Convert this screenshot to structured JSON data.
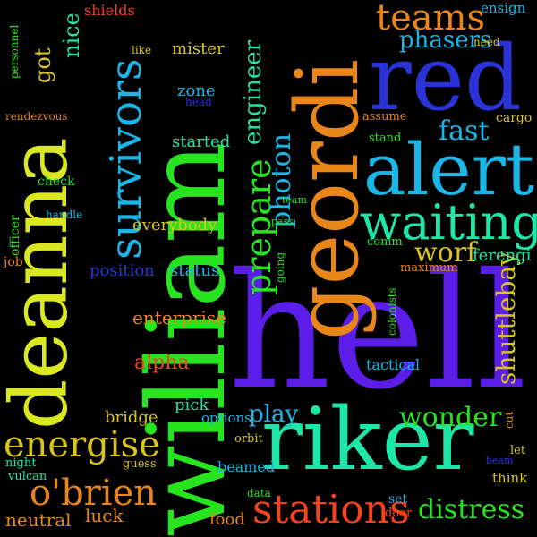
{
  "words": [
    {
      "text": "hell",
      "color": "#5b1de8"
    },
    {
      "text": "william",
      "color": "#27e320"
    },
    {
      "text": "geordi",
      "color": "#e8861a"
    },
    {
      "text": "riker",
      "color": "#1fe6a8"
    },
    {
      "text": "red",
      "color": "#2a34d6"
    },
    {
      "text": "deanna",
      "color": "#d9e820"
    },
    {
      "text": "alert",
      "color": "#1ab6e8"
    },
    {
      "text": "waiting",
      "color": "#1fe6a8"
    },
    {
      "text": "survivors",
      "color": "#1ab6e8"
    },
    {
      "text": "stations",
      "color": "#f2421e"
    },
    {
      "text": "energise",
      "color": "#d9c51c"
    },
    {
      "text": "o'brien",
      "color": "#e8861a"
    },
    {
      "text": "teams",
      "color": "#e8861a"
    },
    {
      "text": "prepare",
      "color": "#27e320"
    },
    {
      "text": "distress",
      "color": "#27e320"
    },
    {
      "text": "wonder",
      "color": "#27e320"
    },
    {
      "text": "photon",
      "color": "#1ab6e8"
    },
    {
      "text": "fast",
      "color": "#1ab6e8"
    },
    {
      "text": "worf",
      "color": "#d9c51c"
    },
    {
      "text": "shuttlebay",
      "color": "#d9c51c"
    },
    {
      "text": "engineer",
      "color": "#1fe6a8"
    },
    {
      "text": "phasers",
      "color": "#1ab6e8"
    },
    {
      "text": "play",
      "color": "#1ab6e8"
    },
    {
      "text": "got",
      "color": "#d9c51c"
    },
    {
      "text": "nice",
      "color": "#1fe6a8"
    },
    {
      "text": "alpha",
      "color": "#f2421e"
    },
    {
      "text": "enterprise",
      "color": "#e8861a"
    },
    {
      "text": "everybody",
      "color": "#d9c51c"
    },
    {
      "text": "position",
      "color": "#2a34d6"
    },
    {
      "text": "status",
      "color": "#1ab6e8"
    },
    {
      "text": "bridge",
      "color": "#d9c51c"
    },
    {
      "text": "pick",
      "color": "#1fe6a8"
    },
    {
      "text": "neutral",
      "color": "#e8861a"
    },
    {
      "text": "luck",
      "color": "#e8861a"
    },
    {
      "text": "food",
      "color": "#e8861a"
    },
    {
      "text": "zone",
      "color": "#1ab6e8"
    },
    {
      "text": "started",
      "color": "#1fe6a8"
    },
    {
      "text": "mister",
      "color": "#d9c51c"
    },
    {
      "text": "beamed",
      "color": "#1ab6e8"
    },
    {
      "text": "shields",
      "color": "#f2421e"
    },
    {
      "text": "personnel",
      "color": "#27e320"
    },
    {
      "text": "like",
      "color": "#d9c51c"
    },
    {
      "text": "head",
      "color": "#2a34d6"
    },
    {
      "text": "ensign",
      "color": "#1ab6e8"
    },
    {
      "text": "need",
      "color": "#d9c51c"
    },
    {
      "text": "cargo",
      "color": "#d9c51c"
    },
    {
      "text": "assume",
      "color": "#e8861a"
    },
    {
      "text": "stand",
      "color": "#27e320"
    },
    {
      "text": "rendezvous",
      "color": "#e8861a"
    },
    {
      "text": "check",
      "color": "#27e320"
    },
    {
      "text": "officer",
      "color": "#27e320"
    },
    {
      "text": "handle",
      "color": "#1ab6e8"
    },
    {
      "text": "job",
      "color": "#e8861a"
    },
    {
      "text": "team",
      "color": "#27e320"
    },
    {
      "text": "pass",
      "color": "#27e320"
    },
    {
      "text": "going",
      "color": "#27e320"
    },
    {
      "text": "comm",
      "color": "#27e320"
    },
    {
      "text": "ferengi",
      "color": "#1fe6a8"
    },
    {
      "text": "maximum",
      "color": "#e8861a"
    },
    {
      "text": "colonists",
      "color": "#27e320"
    },
    {
      "text": "tactical",
      "color": "#1ab6e8"
    },
    {
      "text": "options",
      "color": "#1ab6e8"
    },
    {
      "text": "orbit",
      "color": "#d9c51c"
    },
    {
      "text": "guess",
      "color": "#d9c51c"
    },
    {
      "text": "night",
      "color": "#1fe6a8"
    },
    {
      "text": "vulcan",
      "color": "#1fe6a8"
    },
    {
      "text": "data",
      "color": "#27e320"
    },
    {
      "text": "set",
      "color": "#1ab6e8"
    },
    {
      "text": "door",
      "color": "#f2421e"
    },
    {
      "text": "think",
      "color": "#d9c51c"
    },
    {
      "text": "let",
      "color": "#d9c51c"
    },
    {
      "text": "beam",
      "color": "#2a34d6"
    },
    {
      "text": "cut",
      "color": "#e8861a"
    }
  ]
}
